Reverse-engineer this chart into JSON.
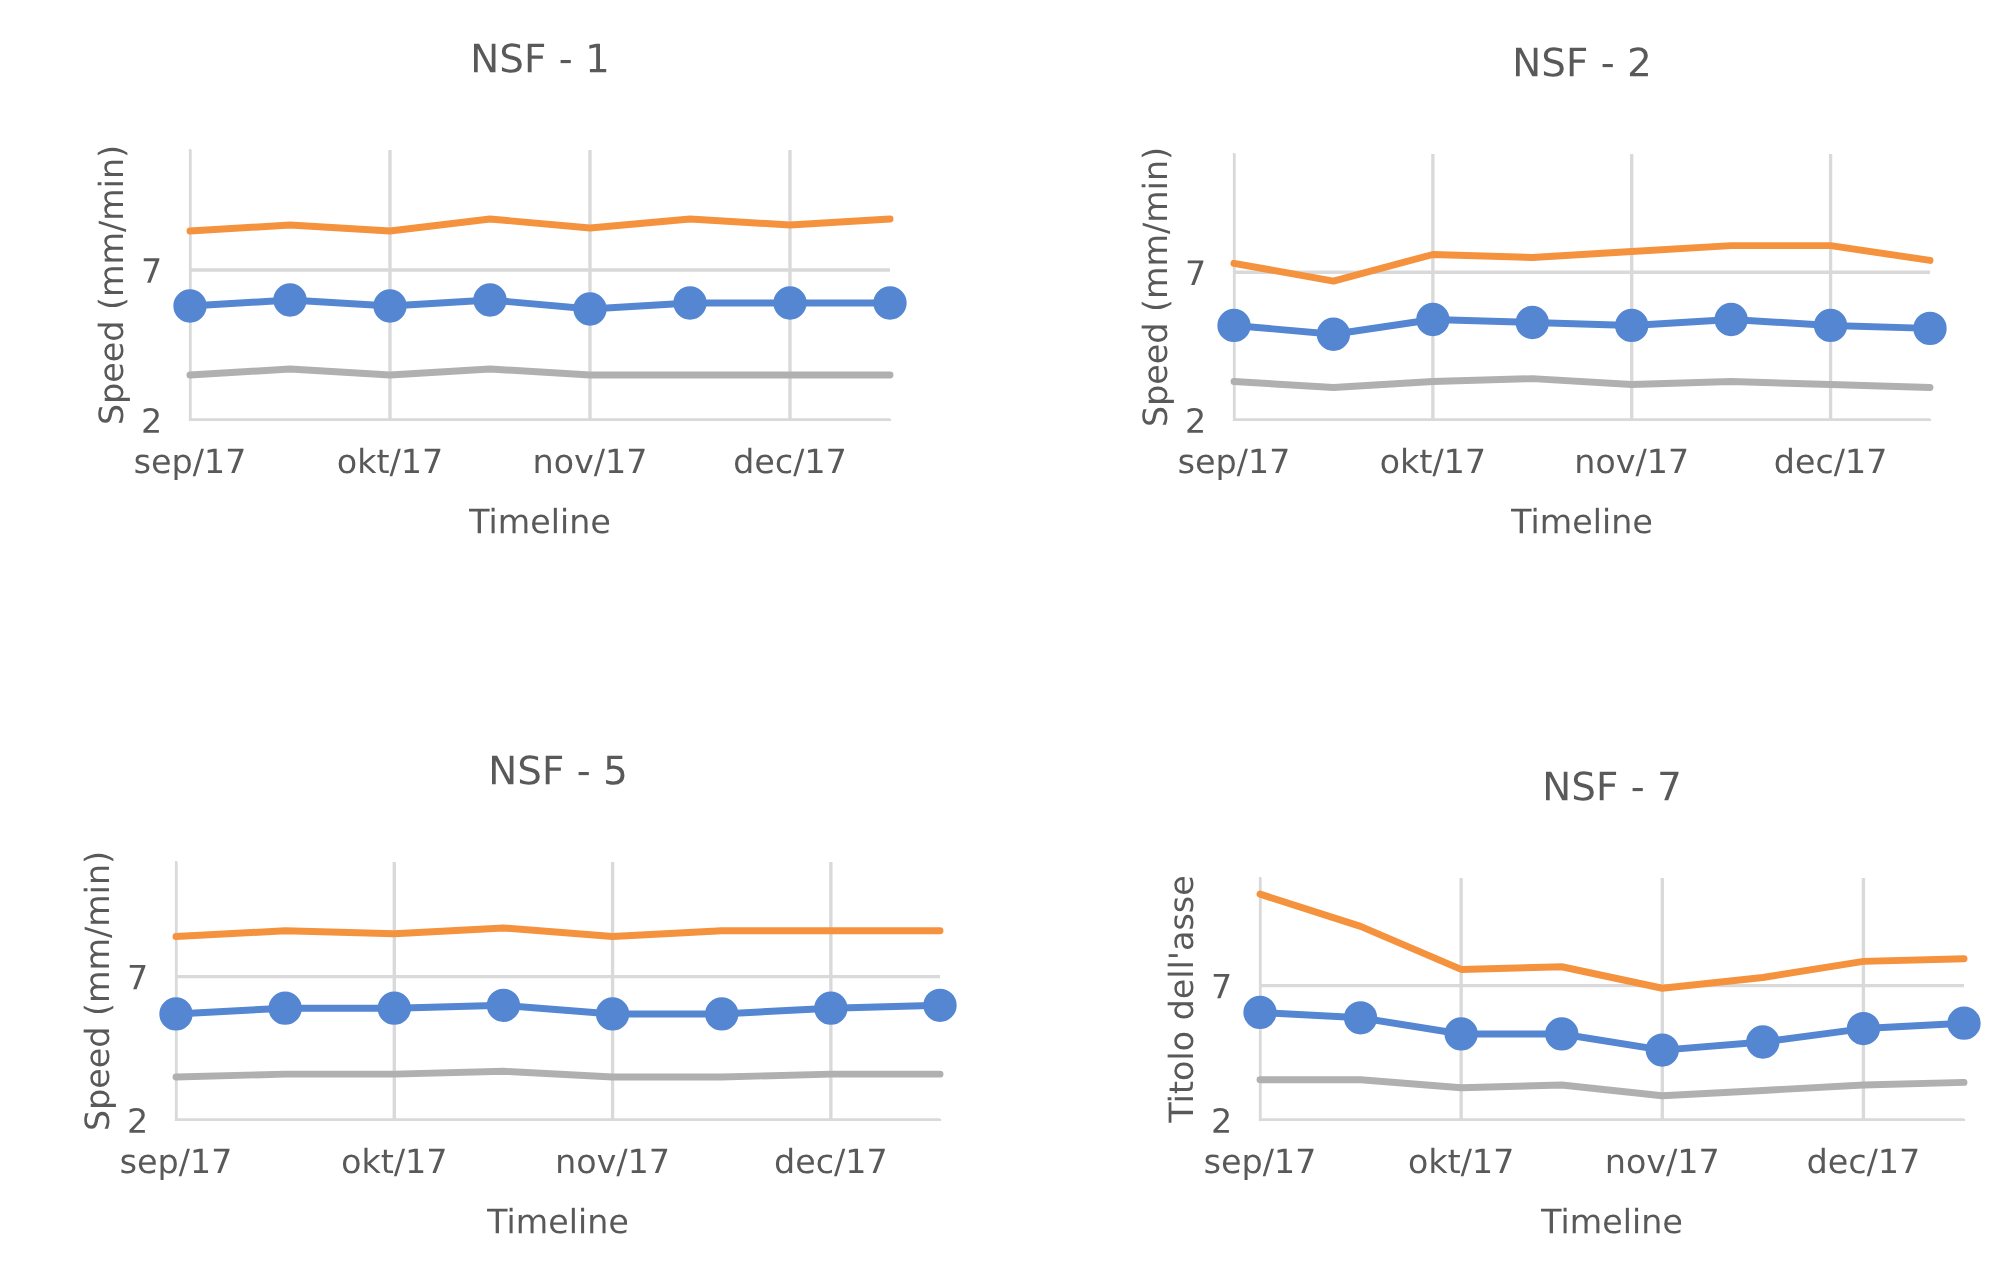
{
  "chart_data": [
    {
      "type": "line",
      "title": "NSF - 1",
      "xlabel": "Timeline",
      "ylabel": "Speed (mm/min)",
      "categories": [
        "sep/17",
        null,
        "okt/17",
        null,
        "nov/17",
        null,
        "dec/17",
        null
      ],
      "ylim": [
        2,
        11
      ],
      "yticks": [
        2,
        7
      ],
      "grid": true,
      "series": [
        {
          "color": "#f5923e",
          "marker": "none",
          "values": [
            8.3,
            8.5,
            8.3,
            8.7,
            8.4,
            8.7,
            8.5,
            8.7
          ]
        },
        {
          "color": "#5586d2",
          "marker": "circle",
          "values": [
            5.8,
            6.0,
            5.8,
            6.0,
            5.7,
            5.9,
            5.9,
            5.9
          ]
        },
        {
          "color": "#b0b0b0",
          "marker": "none",
          "values": [
            3.5,
            3.7,
            3.5,
            3.7,
            3.5,
            3.5,
            3.5,
            3.5
          ]
        }
      ]
    },
    {
      "type": "line",
      "title": "NSF - 2",
      "xlabel": "Timeline",
      "ylabel": "Speed (mm/min)",
      "categories": [
        "sep/17",
        null,
        "okt/17",
        null,
        "nov/17",
        null,
        "dec/17",
        null
      ],
      "ylim": [
        2,
        11
      ],
      "yticks": [
        2,
        7
      ],
      "grid": true,
      "series": [
        {
          "color": "#f5923e",
          "marker": "none",
          "values": [
            7.3,
            6.7,
            7.6,
            7.5,
            7.7,
            7.9,
            7.9,
            7.4
          ]
        },
        {
          "color": "#5586d2",
          "marker": "circle",
          "values": [
            5.2,
            4.9,
            5.4,
            5.3,
            5.2,
            5.4,
            5.2,
            5.1
          ]
        },
        {
          "color": "#b0b0b0",
          "marker": "none",
          "values": [
            3.3,
            3.1,
            3.3,
            3.4,
            3.2,
            3.3,
            3.2,
            3.1
          ]
        }
      ]
    },
    {
      "type": "line",
      "title": "NSF - 5",
      "xlabel": "Timeline",
      "ylabel": "Speed (mm/min)",
      "categories": [
        "sep/17",
        null,
        "okt/17",
        null,
        "nov/17",
        null,
        "dec/17",
        null
      ],
      "ylim": [
        2,
        11
      ],
      "yticks": [
        2,
        7
      ],
      "grid": true,
      "series": [
        {
          "color": "#f5923e",
          "marker": "none",
          "values": [
            8.4,
            8.6,
            8.5,
            8.7,
            8.4,
            8.6,
            8.6,
            8.6
          ]
        },
        {
          "color": "#5586d2",
          "marker": "circle",
          "values": [
            5.7,
            5.9,
            5.9,
            6.0,
            5.7,
            5.7,
            5.9,
            6.0
          ]
        },
        {
          "color": "#b0b0b0",
          "marker": "none",
          "values": [
            3.5,
            3.6,
            3.6,
            3.7,
            3.5,
            3.5,
            3.6,
            3.6
          ]
        }
      ]
    },
    {
      "type": "line",
      "title": "NSF - 7",
      "xlabel": "Timeline",
      "ylabel": "Titolo dell'asse",
      "categories": [
        "sep/17",
        null,
        "okt/17",
        null,
        "nov/17",
        null,
        "dec/17",
        null
      ],
      "ylim": [
        2,
        11
      ],
      "yticks": [
        2,
        7
      ],
      "grid": true,
      "series": [
        {
          "color": "#f5923e",
          "marker": "none",
          "values": [
            10.4,
            9.2,
            7.6,
            7.7,
            6.9,
            7.3,
            7.9,
            8.0
          ]
        },
        {
          "color": "#5586d2",
          "marker": "circle",
          "values": [
            6.0,
            5.8,
            5.2,
            5.2,
            4.6,
            4.9,
            5.4,
            5.6
          ]
        },
        {
          "color": "#b0b0b0",
          "marker": "none",
          "values": [
            3.5,
            3.5,
            3.2,
            3.3,
            2.9,
            3.1,
            3.3,
            3.4
          ]
        }
      ]
    }
  ]
}
